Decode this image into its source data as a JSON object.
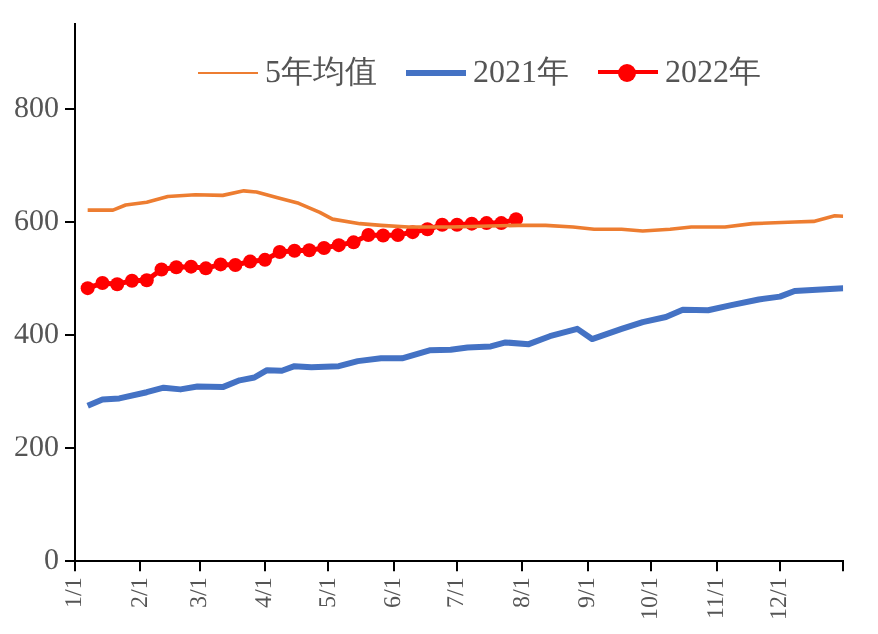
{
  "chart_data": {
    "type": "line",
    "legend": "top",
    "grid": false,
    "marker": "none",
    "xlim": [
      "--01-01",
      "--12-31"
    ],
    "xticks": [
      {
        "value": "--01-01",
        "label": "1/1"
      },
      {
        "value": "--02-01",
        "label": "2/1"
      },
      {
        "value": "--03-01",
        "label": "3/1"
      },
      {
        "value": "--04-01",
        "label": "4/1"
      },
      {
        "value": "--05-01",
        "label": "5/1"
      },
      {
        "value": "--06-01",
        "label": "6/1"
      },
      {
        "value": "--07-01",
        "label": "7/1"
      },
      {
        "value": "--08-01",
        "label": "8/1"
      },
      {
        "value": "--09-01",
        "label": "9/1"
      },
      {
        "value": "--10-01",
        "label": "10/1"
      },
      {
        "value": "--11-01",
        "label": "11/1"
      },
      {
        "value": "--12-01",
        "label": "12/1"
      },
      {
        "value": "--12-31",
        "label": null
      }
    ],
    "ylim": [
      0,
      950
    ],
    "yticks": [
      0,
      200,
      400,
      600,
      800
    ],
    "series": [
      {
        "name": "5年均值",
        "color": "#ed7d31",
        "x": [
          "--01-07",
          "--01-19",
          "--01-25",
          "--02-04",
          "--02-14",
          "--02-27",
          "--03-12",
          "--03-22",
          "--03-28",
          "--04-07",
          "--04-17",
          "--04-27",
          "--05-03",
          "--05-16",
          "--05-26",
          "--06-08",
          "--06-28",
          "--07-30",
          "--08-12",
          "--08-25",
          "--09-04",
          "--09-17",
          "--09-27",
          "--10-10",
          "--10-20",
          "--11-05",
          "--11-18",
          "--12-08",
          "--12-17",
          "--12-27",
          "--12-31"
        ],
        "values": [
          621,
          621,
          630,
          635,
          645,
          648,
          647,
          655,
          653,
          643,
          633,
          617,
          605,
          597,
          594,
          591,
          591,
          594,
          594,
          591,
          587,
          587,
          584,
          587,
          591,
          591,
          597,
          600,
          601,
          611,
          610
        ]
      },
      {
        "name": "2021年",
        "color": "#4472c4",
        "x": [
          "--01-07",
          "--01-14",
          "--01-22",
          "--02-04",
          "--02-12",
          "--02-20",
          "--02-28",
          "--03-12",
          "--03-20",
          "--03-27",
          "--04-02",
          "--04-09",
          "--04-15",
          "--04-23",
          "--05-06",
          "--05-15",
          "--05-26",
          "--06-05",
          "--06-18",
          "--06-28",
          "--07-06",
          "--07-17",
          "--07-24",
          "--08-04",
          "--08-14",
          "--08-27",
          "--09-03",
          "--09-17",
          "--09-27",
          "--10-08",
          "--10-16",
          "--10-28",
          "--11-08",
          "--11-21",
          "--12-01",
          "--12-08",
          "--12-31"
        ],
        "values": [
          275,
          286,
          288,
          299,
          307,
          304,
          309,
          308,
          320,
          325,
          338,
          337,
          345,
          343,
          345,
          354,
          359,
          359,
          373,
          374,
          378,
          380,
          387,
          384,
          398,
          411,
          393,
          411,
          423,
          432,
          445,
          444,
          453,
          463,
          468,
          478,
          483
        ]
      },
      {
        "name": "2022年",
        "color": "#ff0000",
        "marker": "circle",
        "x": [
          "--01-07",
          "--01-14",
          "--01-21",
          "--01-28",
          "--02-04",
          "--02-11",
          "--02-18",
          "--02-25",
          "--03-04",
          "--03-11",
          "--03-18",
          "--03-25",
          "--04-01",
          "--04-08",
          "--04-15",
          "--04-22",
          "--04-29",
          "--05-06",
          "--05-13",
          "--05-20",
          "--05-27",
          "--06-03",
          "--06-10",
          "--06-17",
          "--06-24",
          "--07-01",
          "--07-08",
          "--07-15",
          "--07-22",
          "--07-29"
        ],
        "values": [
          483,
          492,
          490,
          496,
          497,
          516,
          520,
          521,
          518,
          525,
          524,
          530,
          533,
          547,
          549,
          550,
          554,
          559,
          564,
          577,
          576,
          577,
          582,
          587,
          595,
          595,
          597,
          598,
          598,
          605
        ]
      }
    ]
  }
}
